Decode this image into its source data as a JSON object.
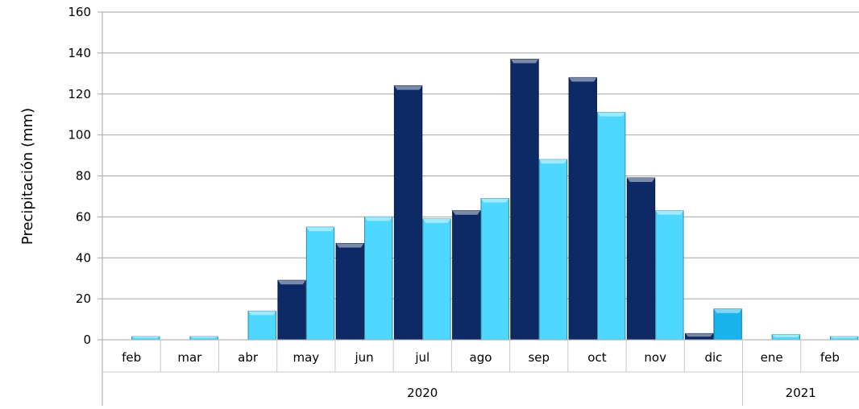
{
  "chart_data": {
    "type": "bar",
    "title": "",
    "xlabel": "",
    "ylabel": "Precipitación (mm)",
    "ylim": [
      0,
      160
    ],
    "yticks": [
      0,
      20,
      40,
      60,
      80,
      100,
      120,
      140,
      160
    ],
    "grid": true,
    "legend": "none",
    "categories": [
      "feb",
      "mar",
      "abr",
      "may",
      "jun",
      "jul",
      "ago",
      "sep",
      "oct",
      "nov",
      "dic",
      "ene",
      "feb"
    ],
    "groups": [
      {
        "label": "2020",
        "span": 11
      },
      {
        "label": "2021",
        "span": 2
      }
    ],
    "series": [
      {
        "values": [
          0,
          0,
          0,
          29,
          47,
          124,
          63,
          137,
          128,
          79,
          3,
          0,
          0
        ],
        "color": "#0e2a66"
      },
      {
        "values": [
          1.5,
          1.5,
          14,
          55,
          60,
          59,
          69,
          88,
          111,
          63,
          15,
          2.5,
          1.5
        ],
        "color": "#4fd8ff"
      }
    ],
    "highlight": {
      "category_index": 10,
      "series_index": 1,
      "color": "#19b3ee"
    }
  }
}
